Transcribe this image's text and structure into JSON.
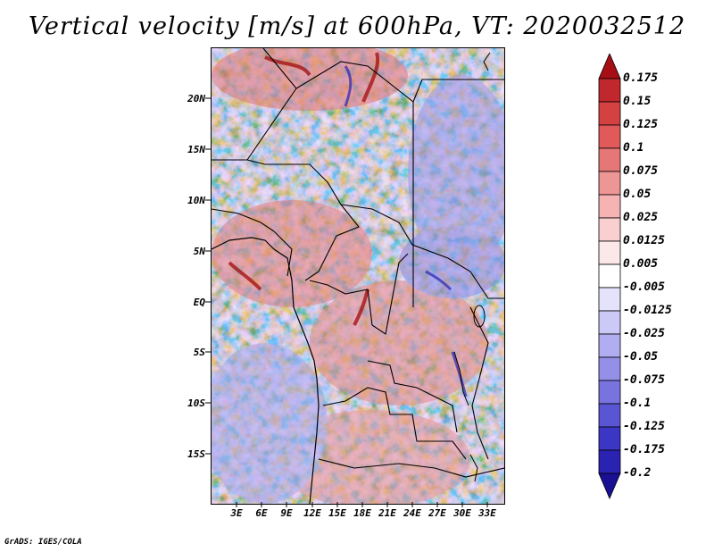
{
  "title": "Vertical velocity [m/s] at 600hPa, VT: 2020032512",
  "footer": "GrADS: IGES/COLA",
  "lat_ticks": [
    "20N",
    "15N",
    "10N",
    "5N",
    "EQ",
    "5S",
    "10S",
    "15S"
  ],
  "lon_ticks": [
    "3E",
    "6E",
    "9E",
    "12E",
    "15E",
    "18E",
    "21E",
    "24E",
    "27E",
    "30E",
    "33E"
  ],
  "colorbar": {
    "labels": [
      "0.175",
      "0.15",
      "0.125",
      "0.1",
      "0.075",
      "0.05",
      "0.025",
      "0.0125",
      "0.005",
      "-0.005",
      "-0.0125",
      "-0.025",
      "-0.05",
      "-0.075",
      "-0.1",
      "-0.125",
      "-0.175",
      "-0.2"
    ],
    "colors": [
      "#a50f15",
      "#c0282d",
      "#d34141",
      "#e05a5a",
      "#e67777",
      "#ee9595",
      "#f5b3b3",
      "#f9cfcf",
      "#fce8e8",
      "#ffffff",
      "#e4e3fb",
      "#cbc9f6",
      "#b0adf0",
      "#9490e8",
      "#7873de",
      "#5a55d2",
      "#3b36c4",
      "#2a22b0",
      "#1a1094"
    ]
  }
}
